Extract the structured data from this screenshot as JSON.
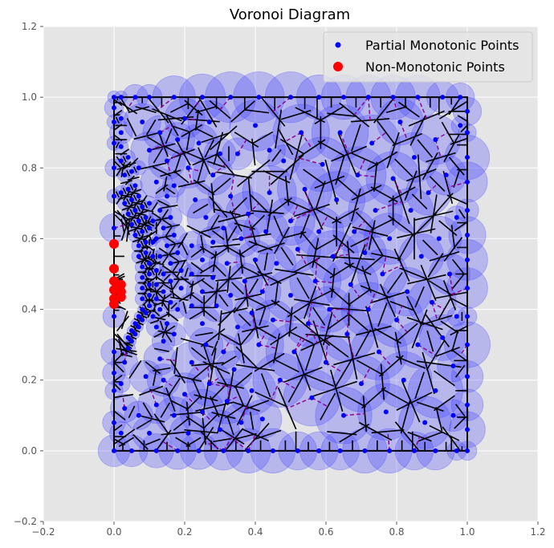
{
  "chart_data": {
    "type": "scatter",
    "title": "Voronoi Diagram",
    "xlabel": "",
    "ylabel": "",
    "xlim": [
      -0.2,
      1.2
    ],
    "ylim": [
      -0.2,
      1.2
    ],
    "xticks": [
      "−0.2",
      "0.0",
      "0.2",
      "0.4",
      "0.6",
      "0.8",
      "1.0",
      "1.2"
    ],
    "yticks": [
      "−0.2",
      "0.0",
      "0.2",
      "0.4",
      "0.6",
      "0.8",
      "1.0",
      "1.2"
    ],
    "grid": true,
    "legend_position": "top-right",
    "bounding_box": {
      "x": [
        0,
        1
      ],
      "y": [
        0,
        1
      ]
    },
    "series": [
      {
        "name": "Partial Monotonic Points",
        "color": "#0000ff",
        "marker": "circle-small",
        "description_points": "dense cluster along curved boundary near x≈0.02–0.12, sparser grid elsewhere",
        "points": [
          [
            0.0,
            0.0
          ],
          [
            0.05,
            0.0
          ],
          [
            0.12,
            0.0
          ],
          [
            0.18,
            0.0
          ],
          [
            0.24,
            0.0
          ],
          [
            0.31,
            0.0
          ],
          [
            0.38,
            0.0
          ],
          [
            0.45,
            0.0
          ],
          [
            0.52,
            0.0
          ],
          [
            0.58,
            0.0
          ],
          [
            0.64,
            0.0
          ],
          [
            0.71,
            0.0
          ],
          [
            0.78,
            0.0
          ],
          [
            0.85,
            0.0
          ],
          [
            0.91,
            0.0
          ],
          [
            0.97,
            0.0
          ],
          [
            1.0,
            0.0
          ],
          [
            0.0,
            1.0
          ],
          [
            0.02,
            1.0
          ],
          [
            0.06,
            1.0
          ],
          [
            0.1,
            1.0
          ],
          [
            0.17,
            1.0
          ],
          [
            0.25,
            1.0
          ],
          [
            0.33,
            1.0
          ],
          [
            0.41,
            1.0
          ],
          [
            0.5,
            1.0
          ],
          [
            0.58,
            1.0
          ],
          [
            0.65,
            1.0
          ],
          [
            0.72,
            1.0
          ],
          [
            0.79,
            1.0
          ],
          [
            0.86,
            1.0
          ],
          [
            0.93,
            1.0
          ],
          [
            0.98,
            1.0
          ],
          [
            1.0,
            0.06
          ],
          [
            1.0,
            0.13
          ],
          [
            1.0,
            0.21
          ],
          [
            1.0,
            0.3
          ],
          [
            1.0,
            0.38
          ],
          [
            1.0,
            0.46
          ],
          [
            1.0,
            0.54
          ],
          [
            1.0,
            0.61
          ],
          [
            1.0,
            0.68
          ],
          [
            1.0,
            0.76
          ],
          [
            1.0,
            0.83
          ],
          [
            1.0,
            0.9
          ],
          [
            1.0,
            0.96
          ],
          [
            0.0,
            0.08
          ],
          [
            0.0,
            0.17
          ],
          [
            0.0,
            0.22
          ],
          [
            0.0,
            0.28
          ],
          [
            0.0,
            0.38
          ],
          [
            0.0,
            0.63
          ],
          [
            0.0,
            0.72
          ],
          [
            0.0,
            0.8
          ],
          [
            0.0,
            0.87
          ],
          [
            0.0,
            0.93
          ],
          [
            0.0,
            0.97
          ],
          [
            0.02,
            0.05
          ],
          [
            0.03,
            0.12
          ],
          [
            0.02,
            0.19
          ],
          [
            0.03,
            0.25
          ],
          [
            0.04,
            0.29
          ],
          [
            0.05,
            0.31
          ],
          [
            0.06,
            0.33
          ],
          [
            0.07,
            0.35
          ],
          [
            0.08,
            0.37
          ],
          [
            0.09,
            0.39
          ],
          [
            0.1,
            0.41
          ],
          [
            0.1,
            0.44
          ],
          [
            0.1,
            0.47
          ],
          [
            0.1,
            0.5
          ],
          [
            0.1,
            0.53
          ],
          [
            0.09,
            0.56
          ],
          [
            0.09,
            0.59
          ],
          [
            0.08,
            0.62
          ],
          [
            0.07,
            0.65
          ],
          [
            0.06,
            0.68
          ],
          [
            0.05,
            0.71
          ],
          [
            0.04,
            0.74
          ],
          [
            0.03,
            0.78
          ],
          [
            0.02,
            0.82
          ],
          [
            0.02,
            0.86
          ],
          [
            0.02,
            0.9
          ],
          [
            0.02,
            0.94
          ],
          [
            0.04,
            0.32
          ],
          [
            0.05,
            0.34
          ],
          [
            0.06,
            0.36
          ],
          [
            0.07,
            0.38
          ],
          [
            0.08,
            0.4
          ],
          [
            0.08,
            0.43
          ],
          [
            0.08,
            0.46
          ],
          [
            0.08,
            0.49
          ],
          [
            0.08,
            0.52
          ],
          [
            0.07,
            0.55
          ],
          [
            0.07,
            0.58
          ],
          [
            0.06,
            0.61
          ],
          [
            0.05,
            0.64
          ],
          [
            0.04,
            0.67
          ],
          [
            0.03,
            0.7
          ],
          [
            0.02,
            0.73
          ],
          [
            0.12,
            0.43
          ],
          [
            0.12,
            0.47
          ],
          [
            0.12,
            0.51
          ],
          [
            0.11,
            0.55
          ],
          [
            0.11,
            0.38
          ],
          [
            0.11,
            0.59
          ],
          [
            0.1,
            0.63
          ],
          [
            0.09,
            0.66
          ],
          [
            0.08,
            0.69
          ],
          [
            0.07,
            0.72
          ],
          [
            0.06,
            0.75
          ],
          [
            0.05,
            0.79
          ],
          [
            0.04,
            0.83
          ],
          [
            0.14,
            0.45
          ],
          [
            0.14,
            0.5
          ],
          [
            0.13,
            0.55
          ],
          [
            0.13,
            0.4
          ],
          [
            0.12,
            0.35
          ],
          [
            0.12,
            0.6
          ],
          [
            0.11,
            0.65
          ],
          [
            0.1,
            0.7
          ],
          [
            0.16,
            0.42
          ],
          [
            0.16,
            0.48
          ],
          [
            0.16,
            0.53
          ],
          [
            0.15,
            0.58
          ],
          [
            0.15,
            0.36
          ],
          [
            0.14,
            0.31
          ],
          [
            0.14,
            0.63
          ],
          [
            0.13,
            0.68
          ],
          [
            0.19,
            0.46
          ],
          [
            0.19,
            0.51
          ],
          [
            0.18,
            0.56
          ],
          [
            0.18,
            0.4
          ],
          [
            0.17,
            0.33
          ],
          [
            0.17,
            0.61
          ],
          [
            0.16,
            0.66
          ],
          [
            0.15,
            0.72
          ],
          [
            0.07,
            0.1
          ],
          [
            0.1,
            0.05
          ],
          [
            0.12,
            0.13
          ],
          [
            0.09,
            0.21
          ],
          [
            0.14,
            0.2
          ],
          [
            0.13,
            0.26
          ],
          [
            0.17,
            0.1
          ],
          [
            0.2,
            0.16
          ],
          [
            0.21,
            0.05
          ],
          [
            0.22,
            0.25
          ],
          [
            0.25,
            0.11
          ],
          [
            0.27,
            0.19
          ],
          [
            0.26,
            0.3
          ],
          [
            0.3,
            0.06
          ],
          [
            0.32,
            0.14
          ],
          [
            0.34,
            0.23
          ],
          [
            0.31,
            0.28
          ],
          [
            0.07,
            0.8
          ],
          [
            0.1,
            0.85
          ],
          [
            0.08,
            0.93
          ],
          [
            0.13,
            0.9
          ],
          [
            0.12,
            0.76
          ],
          [
            0.15,
            0.82
          ],
          [
            0.18,
            0.88
          ],
          [
            0.2,
            0.94
          ],
          [
            0.17,
            0.75
          ],
          [
            0.21,
            0.8
          ],
          [
            0.23,
            0.71
          ],
          [
            0.24,
            0.87
          ],
          [
            0.27,
            0.93
          ],
          [
            0.28,
            0.78
          ],
          [
            0.26,
            0.66
          ],
          [
            0.3,
            0.84
          ],
          [
            0.33,
            0.72
          ],
          [
            0.22,
            0.41
          ],
          [
            0.22,
            0.5
          ],
          [
            0.22,
            0.58
          ],
          [
            0.25,
            0.45
          ],
          [
            0.25,
            0.54
          ],
          [
            0.25,
            0.36
          ],
          [
            0.28,
            0.49
          ],
          [
            0.28,
            0.59
          ],
          [
            0.29,
            0.41
          ],
          [
            0.32,
            0.53
          ],
          [
            0.33,
            0.44
          ],
          [
            0.31,
            0.63
          ],
          [
            0.35,
            0.35
          ],
          [
            0.36,
            0.6
          ],
          [
            0.37,
            0.48
          ],
          [
            0.38,
            0.67
          ],
          [
            0.39,
            0.39
          ],
          [
            0.41,
            0.3
          ],
          [
            0.4,
            0.54
          ],
          [
            0.42,
            0.45
          ],
          [
            0.43,
            0.62
          ],
          [
            0.44,
            0.73
          ],
          [
            0.45,
            0.37
          ],
          [
            0.46,
            0.53
          ],
          [
            0.47,
            0.2
          ],
          [
            0.48,
            0.82
          ],
          [
            0.5,
            0.65
          ],
          [
            0.5,
            0.44
          ],
          [
            0.51,
            0.28
          ],
          [
            0.52,
            0.57
          ],
          [
            0.53,
            0.9
          ],
          [
            0.54,
            0.74
          ],
          [
            0.55,
            0.36
          ],
          [
            0.56,
            0.15
          ],
          [
            0.57,
            0.48
          ],
          [
            0.58,
            0.62
          ],
          [
            0.59,
            0.81
          ],
          [
            0.6,
            0.25
          ],
          [
            0.61,
            0.4
          ],
          [
            0.62,
            0.55
          ],
          [
            0.63,
            0.71
          ],
          [
            0.64,
            0.9
          ],
          [
            0.65,
            0.1
          ],
          [
            0.66,
            0.33
          ],
          [
            0.67,
            0.47
          ],
          [
            0.68,
            0.62
          ],
          [
            0.69,
            0.78
          ],
          [
            0.7,
            0.19
          ],
          [
            0.71,
            0.56
          ],
          [
            0.72,
            0.4
          ],
          [
            0.73,
            0.87
          ],
          [
            0.74,
            0.68
          ],
          [
            0.75,
            0.28
          ],
          [
            0.76,
            0.5
          ],
          [
            0.77,
            0.11
          ],
          [
            0.78,
            0.6
          ],
          [
            0.79,
            0.77
          ],
          [
            0.8,
            0.37
          ],
          [
            0.81,
            0.93
          ],
          [
            0.82,
            0.2
          ],
          [
            0.83,
            0.45
          ],
          [
            0.84,
            0.68
          ],
          [
            0.85,
            0.83
          ],
          [
            0.86,
            0.3
          ],
          [
            0.87,
            0.55
          ],
          [
            0.88,
            0.08
          ],
          [
            0.89,
            0.73
          ],
          [
            0.9,
            0.42
          ],
          [
            0.91,
            0.17
          ],
          [
            0.91,
            0.88
          ],
          [
            0.92,
            0.6
          ],
          [
            0.93,
            0.32
          ],
          [
            0.94,
            0.78
          ],
          [
            0.95,
            0.5
          ],
          [
            0.96,
            0.1
          ],
          [
            0.96,
            0.24
          ],
          [
            0.97,
            0.66
          ],
          [
            0.97,
            0.38
          ],
          [
            0.98,
            0.92
          ],
          [
            0.36,
            0.08
          ],
          [
            0.39,
            0.17
          ],
          [
            0.42,
            0.09
          ],
          [
            0.35,
            0.84
          ],
          [
            0.4,
            0.92
          ],
          [
            0.44,
            0.85
          ]
        ]
      },
      {
        "name": "Non-Monotonic Points",
        "color": "#ff0000",
        "marker": "circle-large",
        "points": [
          [
            0.0,
            0.585
          ],
          [
            0.0,
            0.515
          ],
          [
            0.0,
            0.48
          ],
          [
            0.0,
            0.455
          ],
          [
            0.0,
            0.43
          ],
          [
            0.0,
            0.415
          ],
          [
            0.02,
            0.47
          ],
          [
            0.02,
            0.45
          ],
          [
            0.02,
            0.435
          ],
          [
            0.015,
            0.46
          ]
        ]
      }
    ],
    "voronoi_edge_color": "#000000",
    "dashed_link_color": "#8b008b",
    "circle_fill_color": "#4040ff"
  },
  "legend": {
    "items": [
      {
        "label": "Partial Monotonic Points",
        "color": "#0000ff"
      },
      {
        "label": "Non-Monotonic Points",
        "color": "#ff0000"
      }
    ]
  },
  "colors": {
    "plot_background": "#e5e5e5",
    "grid": "#ffffff"
  }
}
